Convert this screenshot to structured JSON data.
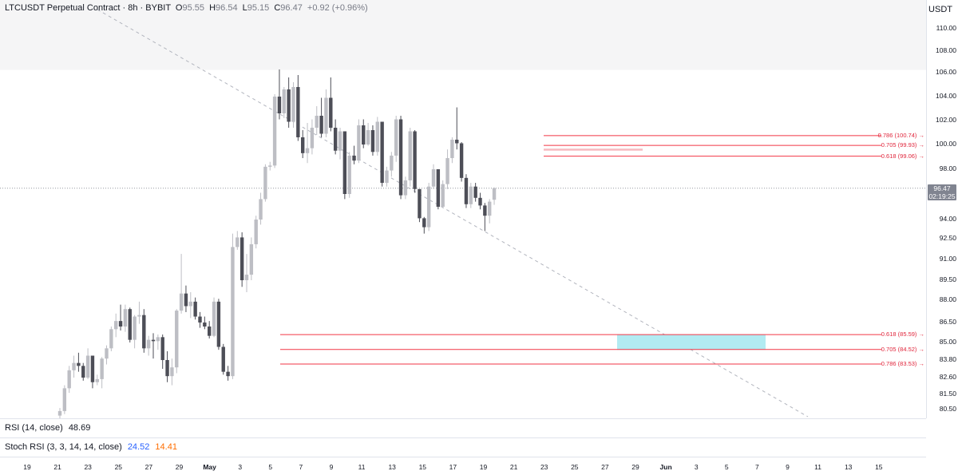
{
  "legend": {
    "symbol": "LTCUSDT Perpetual Contract · 8h · BYBIT",
    "open_label": "O",
    "open": "95.55",
    "high_label": "H",
    "high": "96.54",
    "low_label": "L",
    "low": "95.15",
    "close_label": "C",
    "close": "96.47",
    "change": "+0.92 (+0.96%)"
  },
  "price_axis": {
    "currency": "USDT",
    "ticks": [
      "110.00",
      "108.00",
      "106.00",
      "104.00",
      "102.00",
      "100.00",
      "98.00",
      "96.00",
      "94.00",
      "92.50",
      "91.00",
      "89.50",
      "88.00",
      "86.50",
      "85.00",
      "83.80",
      "82.60",
      "81.50",
      "80.50"
    ],
    "last_price": "96.47",
    "countdown": "02:19:25"
  },
  "fib_levels": {
    "upper": [
      {
        "label": "0.786 (100.74)",
        "price": 100.74
      },
      {
        "label": "0.705 (99.93)",
        "price": 99.93
      },
      {
        "label": "0.618 (99.06)",
        "price": 99.06
      }
    ],
    "lower": [
      {
        "label": "0.618 (85.59)",
        "price": 85.59
      },
      {
        "label": "0.705 (84.52)",
        "price": 84.52
      },
      {
        "label": "0.786 (83.53)",
        "price": 83.53
      }
    ]
  },
  "indicators": {
    "rsi_label": "RSI (14, close)",
    "rsi_value": "48.69",
    "stoch_label": "Stoch RSI (3, 3, 14, 14, close)",
    "stoch_k": "24.52",
    "stoch_d": "14.41"
  },
  "time_axis": [
    "19",
    "21",
    "23",
    "25",
    "27",
    "29",
    "May",
    "3",
    "5",
    "7",
    "9",
    "11",
    "13",
    "15",
    "17",
    "19",
    "21",
    "23",
    "25",
    "27",
    "29",
    "Jun",
    "3",
    "5",
    "7",
    "9",
    "11",
    "13",
    "15"
  ],
  "colors": {
    "up": "#bdbec4",
    "down": "#4d4e57",
    "fib": "#f23645",
    "zone": "#b2ebf2",
    "trendline": "#b2b5be"
  },
  "chart_data": {
    "type": "candlestick",
    "title": "LTCUSDT Perpetual Contract · 8h · BYBIT",
    "price_scale": "USDT",
    "candles_ohlc": [
      [
        80.1,
        80.6,
        79.9,
        80.4
      ],
      [
        80.4,
        82.1,
        80.2,
        81.9
      ],
      [
        81.9,
        83.4,
        81.6,
        83.1
      ],
      [
        83.1,
        84.1,
        82.6,
        83.6
      ],
      [
        83.6,
        84.3,
        83.0,
        83.4
      ],
      [
        83.4,
        83.6,
        82.4,
        82.6
      ],
      [
        82.6,
        84.6,
        82.5,
        84.1
      ],
      [
        84.1,
        83.9,
        81.9,
        82.3
      ],
      [
        82.3,
        82.8,
        82.1,
        82.5
      ],
      [
        82.5,
        84.0,
        81.9,
        83.9
      ],
      [
        83.9,
        84.8,
        83.5,
        84.6
      ],
      [
        84.6,
        86.2,
        84.4,
        86.0
      ],
      [
        86.0,
        87.1,
        85.4,
        86.6
      ],
      [
        86.6,
        87.7,
        85.9,
        86.2
      ],
      [
        86.2,
        87.7,
        85.8,
        87.4
      ],
      [
        87.4,
        87.5,
        85.0,
        85.2
      ],
      [
        85.2,
        87.0,
        84.6,
        86.9
      ],
      [
        86.9,
        87.9,
        86.4,
        87.0
      ],
      [
        87.0,
        87.4,
        84.3,
        84.6
      ],
      [
        84.6,
        85.5,
        84.1,
        85.2
      ],
      [
        85.2,
        85.7,
        83.9,
        85.1
      ],
      [
        85.1,
        85.6,
        84.5,
        85.4
      ],
      [
        85.4,
        85.6,
        83.2,
        83.8
      ],
      [
        83.8,
        84.4,
        82.3,
        82.7
      ],
      [
        82.7,
        83.9,
        82.1,
        83.3
      ],
      [
        83.3,
        87.4,
        82.9,
        87.3
      ],
      [
        87.3,
        91.4,
        87.1,
        88.5
      ],
      [
        88.5,
        89.1,
        87.2,
        87.6
      ],
      [
        87.6,
        88.6,
        86.8,
        87.9
      ],
      [
        87.9,
        88.2,
        86.7,
        86.9
      ],
      [
        86.9,
        87.2,
        86.1,
        86.5
      ],
      [
        86.5,
        86.9,
        86.0,
        86.2
      ],
      [
        86.2,
        86.6,
        85.3,
        85.5
      ],
      [
        85.5,
        88.2,
        85.4,
        87.9
      ],
      [
        87.9,
        88.1,
        84.5,
        84.7
      ],
      [
        84.7,
        84.9,
        82.8,
        83.0
      ],
      [
        83.0,
        83.4,
        82.4,
        82.7
      ],
      [
        82.7,
        92.9,
        82.5,
        91.9
      ],
      [
        91.9,
        93.1,
        91.7,
        92.6
      ],
      [
        92.6,
        93.0,
        89.0,
        89.5
      ],
      [
        89.5,
        91.4,
        88.6,
        89.9
      ],
      [
        89.9,
        92.6,
        89.5,
        92.1
      ],
      [
        92.1,
        94.3,
        91.8,
        94.0
      ],
      [
        94.0,
        96.1,
        93.6,
        95.6
      ],
      [
        95.6,
        98.4,
        95.4,
        98.2
      ],
      [
        98.2,
        98.6,
        97.9,
        98.3
      ],
      [
        98.3,
        104.2,
        98.1,
        104.0
      ],
      [
        104.0,
        106.3,
        102.1,
        102.6
      ],
      [
        102.6,
        104.8,
        102.2,
        104.6
      ],
      [
        104.6,
        105.6,
        101.4,
        101.9
      ],
      [
        101.9,
        105.2,
        101.4,
        104.8
      ],
      [
        104.8,
        105.8,
        100.3,
        100.6
      ],
      [
        100.6,
        101.2,
        98.9,
        99.3
      ],
      [
        99.3,
        101.8,
        98.5,
        99.7
      ],
      [
        99.7,
        102.1,
        99.2,
        101.4
      ],
      [
        101.4,
        103.2,
        100.8,
        102.4
      ],
      [
        102.4,
        103.9,
        100.6,
        100.9
      ],
      [
        100.9,
        104.6,
        100.6,
        103.9
      ],
      [
        103.9,
        105.6,
        101.1,
        101.4
      ],
      [
        101.4,
        102.1,
        99.2,
        99.5
      ],
      [
        99.5,
        101.4,
        98.8,
        101.1
      ],
      [
        101.1,
        100.9,
        95.6,
        96.0
      ],
      [
        96.0,
        99.4,
        95.7,
        99.1
      ],
      [
        99.1,
        99.9,
        98.4,
        98.7
      ],
      [
        98.7,
        102.1,
        98.5,
        101.6
      ],
      [
        101.6,
        102.1,
        99.7,
        100.0
      ],
      [
        100.0,
        101.8,
        99.9,
        101.2
      ],
      [
        101.2,
        101.6,
        99.1,
        99.4
      ],
      [
        99.4,
        102.3,
        99.1,
        101.9
      ],
      [
        101.9,
        101.6,
        96.6,
        96.9
      ],
      [
        96.9,
        98.2,
        96.6,
        97.9
      ],
      [
        97.9,
        99.4,
        97.4,
        99.1
      ],
      [
        99.1,
        102.4,
        98.6,
        102.1
      ],
      [
        102.1,
        102.4,
        95.6,
        95.9
      ],
      [
        95.9,
        97.4,
        95.6,
        97.1
      ],
      [
        97.1,
        101.4,
        96.6,
        101.1
      ],
      [
        101.1,
        101.2,
        96.1,
        96.4
      ],
      [
        96.4,
        94.9,
        93.8,
        94.1
      ],
      [
        94.1,
        94.2,
        92.9,
        93.4
      ],
      [
        93.4,
        96.9,
        93.1,
        96.6
      ],
      [
        96.6,
        98.4,
        96.4,
        98.0
      ],
      [
        98.0,
        95.6,
        94.8,
        95.0
      ],
      [
        95.0,
        97.1,
        94.9,
        96.8
      ],
      [
        96.8,
        99.6,
        96.4,
        98.9
      ],
      [
        98.9,
        100.6,
        98.5,
        100.4
      ],
      [
        100.4,
        103.1,
        99.6,
        100.1
      ],
      [
        100.1,
        100.2,
        97.0,
        97.3
      ],
      [
        97.3,
        97.6,
        94.9,
        95.2
      ],
      [
        95.2,
        96.9,
        94.9,
        96.6
      ],
      [
        96.6,
        96.9,
        95.4,
        95.7
      ],
      [
        95.7,
        96.1,
        94.8,
        95.1
      ],
      [
        95.1,
        95.3,
        93.1,
        94.3
      ],
      [
        94.3,
        95.6,
        93.7,
        95.4
      ],
      [
        95.55,
        96.54,
        95.15,
        96.47
      ]
    ],
    "y_range": [
      80.0,
      110.8
    ],
    "fibonacci_retracement_upper": {
      "0.618": 99.06,
      "0.705": 99.93,
      "0.786": 100.74
    },
    "fibonacci_retracement_lower": {
      "0.618": 85.59,
      "0.705": 84.52,
      "0.786": 83.53
    },
    "target_zone": {
      "from": 84.5,
      "to": 85.6
    },
    "x_labels": [
      "19",
      "21",
      "23",
      "25",
      "27",
      "29",
      "May",
      "3",
      "5",
      "7",
      "9",
      "11",
      "13",
      "15",
      "17",
      "19",
      "21",
      "23",
      "25",
      "27",
      "29",
      "Jun",
      "3",
      "5",
      "7",
      "9",
      "11",
      "13",
      "15"
    ]
  }
}
